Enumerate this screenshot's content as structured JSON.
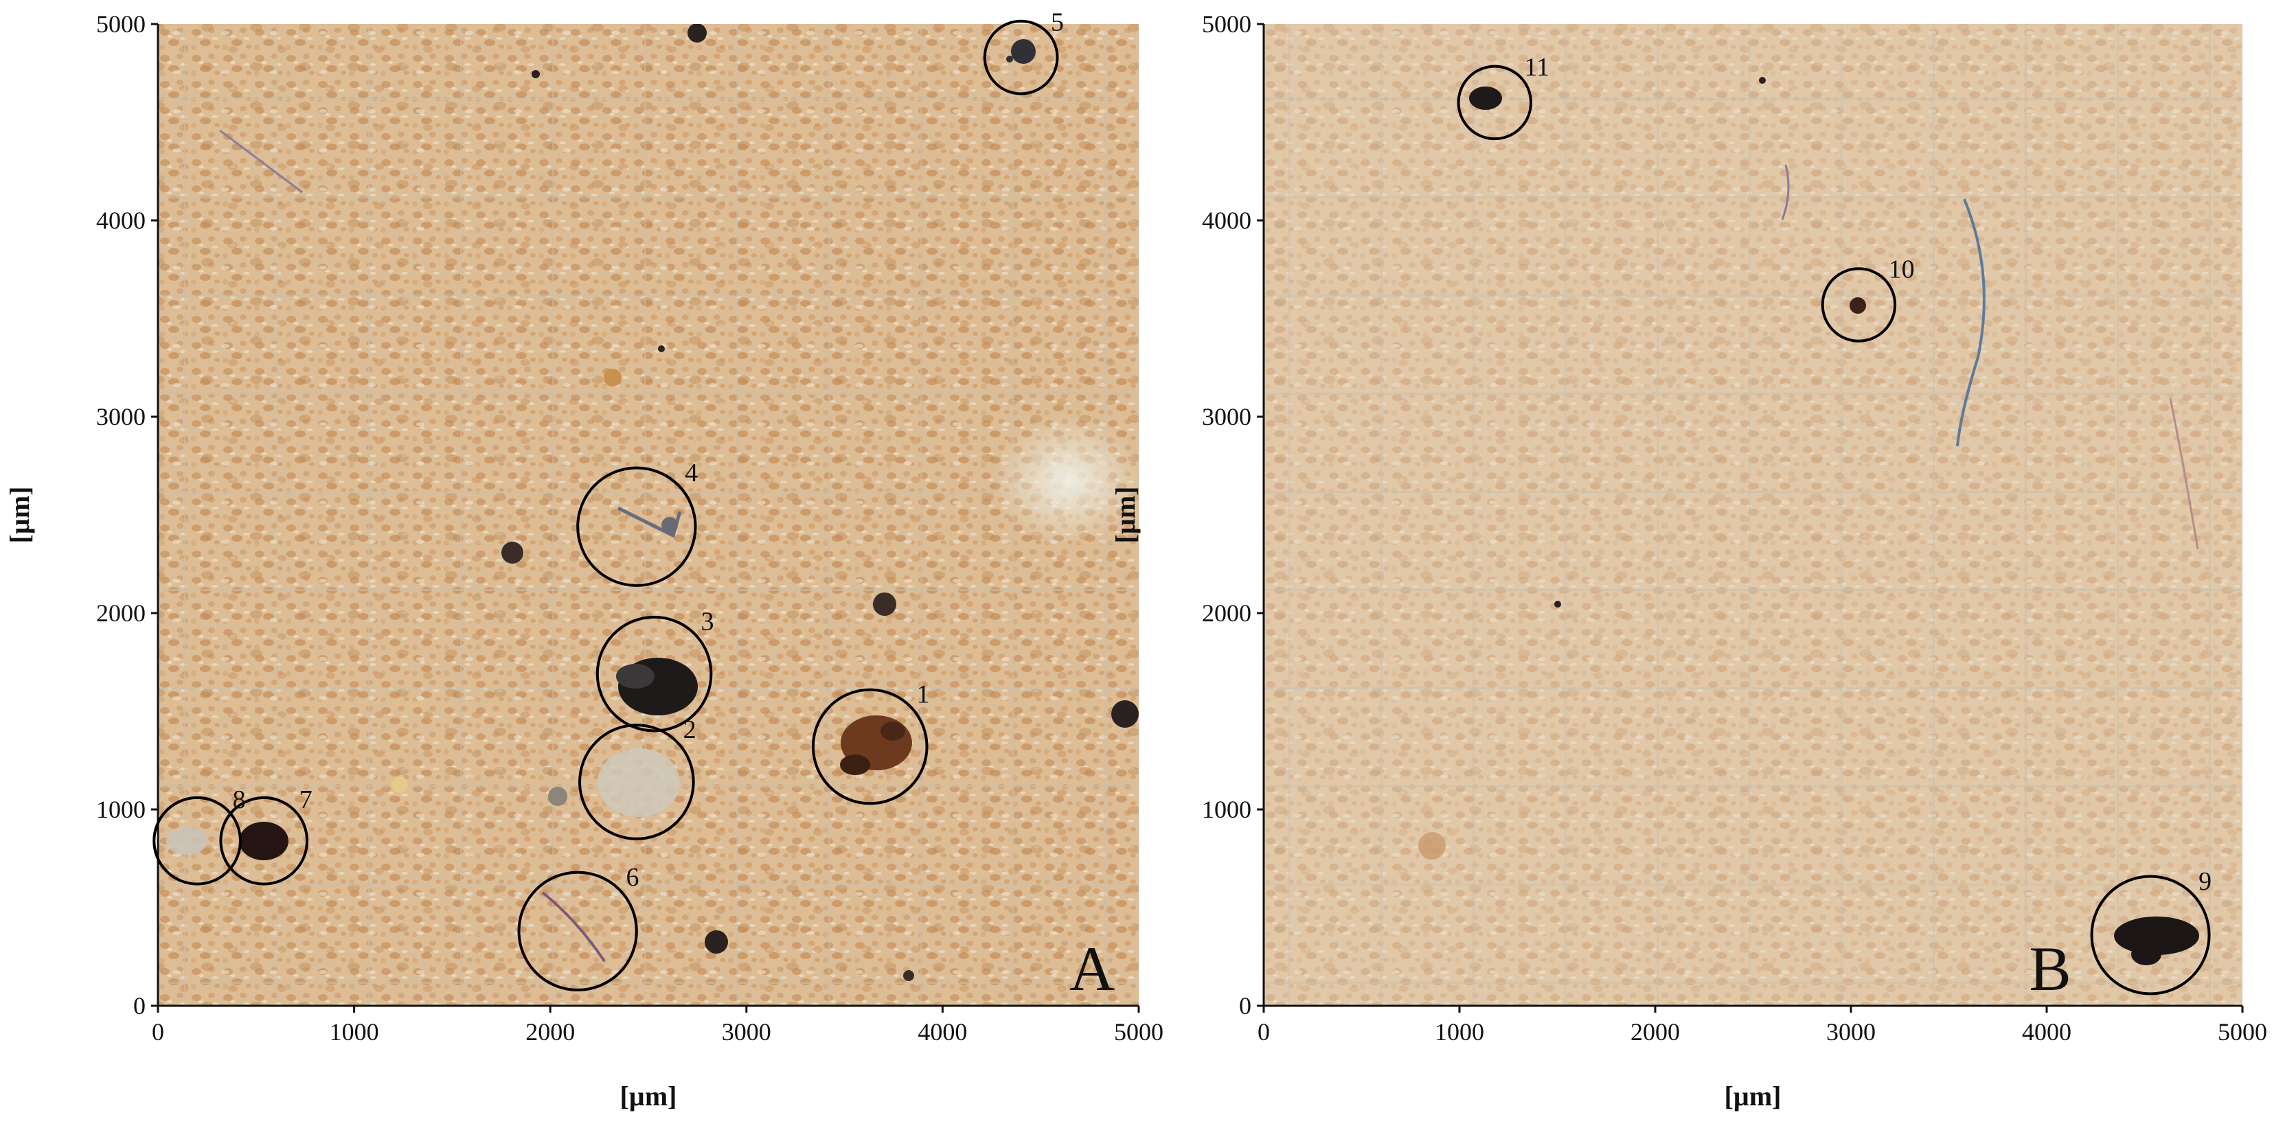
{
  "panels": [
    {
      "id": "A",
      "label": "A",
      "xlabel": "[µm]",
      "ylabel": "[µm]",
      "xlim": [
        0,
        5000
      ],
      "ylim": [
        0,
        5000
      ],
      "xticks": [
        "0",
        "1000",
        "2000",
        "3000",
        "4000",
        "5000"
      ],
      "yticks": [
        "0",
        "1000",
        "2000",
        "3000",
        "4000",
        "5000"
      ],
      "marked_particles": [
        {
          "n": "1",
          "x": 3630,
          "y": 1320,
          "r": 290
        },
        {
          "n": "2",
          "x": 2440,
          "y": 1140,
          "r": 290
        },
        {
          "n": "3",
          "x": 2530,
          "y": 1690,
          "r": 290
        },
        {
          "n": "4",
          "x": 2440,
          "y": 2440,
          "r": 300
        },
        {
          "n": "5",
          "x": 4400,
          "y": 4830,
          "r": 185
        },
        {
          "n": "6",
          "x": 2140,
          "y": 380,
          "r": 300
        },
        {
          "n": "7",
          "x": 540,
          "y": 840,
          "r": 220
        },
        {
          "n": "8",
          "x": 200,
          "y": 840,
          "r": 220
        }
      ]
    },
    {
      "id": "B",
      "label": "B",
      "xlabel": "[µm]",
      "ylabel": "[µm]",
      "xlim": [
        0,
        5000
      ],
      "ylim": [
        0,
        5000
      ],
      "xticks": [
        "0",
        "1000",
        "2000",
        "3000",
        "4000",
        "5000"
      ],
      "yticks": [
        "0",
        "1000",
        "2000",
        "3000",
        "4000",
        "5000"
      ],
      "marked_particles": [
        {
          "n": "9",
          "x": 4530,
          "y": 360,
          "r": 300
        },
        {
          "n": "10",
          "x": 3040,
          "y": 3570,
          "r": 185
        },
        {
          "n": "11",
          "x": 1180,
          "y": 4600,
          "r": 185
        }
      ]
    }
  ],
  "colors": {
    "filter_base": "#d9b891",
    "filter_light": "#e6d3b8",
    "pore_dark": "#c28a55",
    "grid_line": "#c9c2b2",
    "circle": "#000000"
  }
}
